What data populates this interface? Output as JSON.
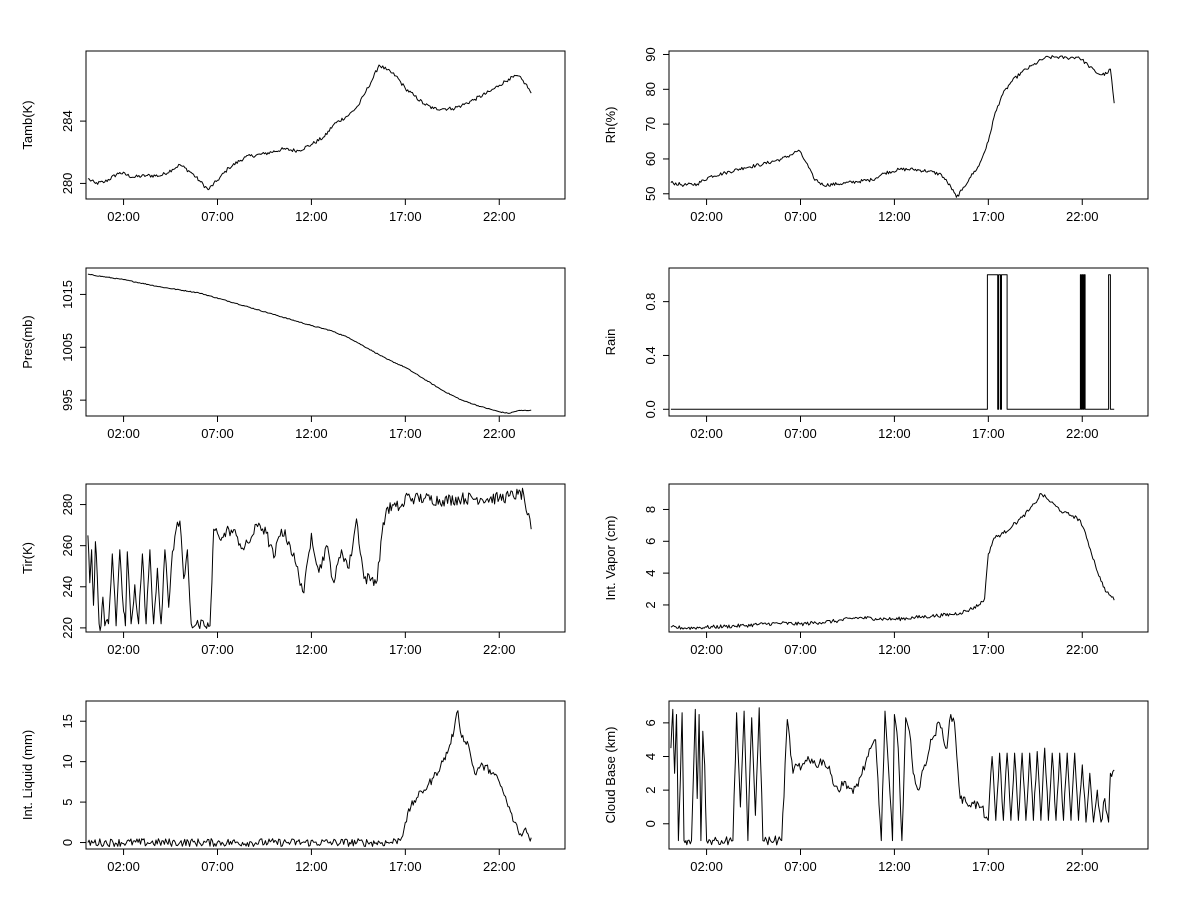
{
  "chart_data": [
    {
      "type": "line",
      "ylabel": "Tamb(K)",
      "xlim": [
        0,
        25.5
      ],
      "ylim": [
        279,
        288.5
      ],
      "x_ticks": [
        2,
        7,
        12,
        17,
        22
      ],
      "x_tick_labels": [
        "02:00",
        "07:00",
        "12:00",
        "17:00",
        "22:00"
      ],
      "y_ticks": [
        280,
        284
      ],
      "y_tick_labels": [
        "280",
        "284"
      ],
      "noise": 0.12,
      "series": [
        {
          "x": [
            0.1,
            0.5,
            1.0,
            1.8,
            2.5,
            3.2,
            4.0,
            4.6,
            5.0,
            5.6,
            6.1,
            6.5,
            7.0,
            7.6,
            8.5,
            9.5,
            10.5,
            11.3,
            12.0,
            12.7,
            13.2,
            14.0,
            14.5,
            14.9,
            15.3,
            15.6,
            16.0,
            16.5,
            17.0,
            17.5,
            18.0,
            18.5,
            19.0,
            19.5,
            20.0,
            20.7,
            21.5,
            22.0,
            22.5,
            23.0,
            23.4,
            23.7
          ],
          "y": [
            280.3,
            280.0,
            280.1,
            280.7,
            280.4,
            280.5,
            280.5,
            280.9,
            281.2,
            280.7,
            280.1,
            279.6,
            280.2,
            281.0,
            281.7,
            281.9,
            282.2,
            282.1,
            282.5,
            283.0,
            283.8,
            284.4,
            285.0,
            285.9,
            286.8,
            287.6,
            287.3,
            286.9,
            286.1,
            285.6,
            285.1,
            284.8,
            284.8,
            284.8,
            285.0,
            285.4,
            285.9,
            286.3,
            286.7,
            286.9,
            286.4,
            285.8
          ]
        }
      ]
    },
    {
      "type": "line",
      "ylabel": "Rh(%)",
      "xlim": [
        0,
        25.5
      ],
      "ylim": [
        48.5,
        91
      ],
      "x_ticks": [
        2,
        7,
        12,
        17,
        22
      ],
      "x_tick_labels": [
        "02:00",
        "07:00",
        "12:00",
        "17:00",
        "22:00"
      ],
      "y_ticks": [
        50,
        60,
        70,
        80,
        90
      ],
      "y_tick_labels": [
        "50",
        "60",
        "70",
        "80",
        "90"
      ],
      "noise": 0.5,
      "series": [
        {
          "x": [
            0.1,
            0.8,
            1.5,
            2.2,
            3.0,
            4.0,
            5.0,
            6.0,
            6.5,
            6.9,
            7.3,
            7.7,
            8.2,
            9.0,
            10.0,
            10.8,
            11.5,
            12.3,
            13.0,
            13.8,
            14.5,
            15.0,
            15.3,
            15.6,
            16.0,
            16.5,
            17.0,
            17.3,
            17.7,
            18.2,
            18.8,
            19.4,
            20.0,
            20.6,
            21.2,
            21.8,
            22.3,
            22.7,
            23.0,
            23.3,
            23.5,
            23.7
          ],
          "y": [
            53.2,
            52.5,
            52.8,
            55.0,
            56.0,
            57.5,
            58.5,
            60.0,
            61.2,
            62.5,
            59.0,
            54.5,
            52.5,
            52.8,
            53.5,
            54.0,
            56.0,
            57.0,
            57.0,
            56.5,
            55.5,
            52.0,
            49.0,
            51.0,
            54.5,
            58.0,
            65.0,
            72.0,
            78.0,
            82.0,
            85.0,
            87.0,
            89.0,
            89.3,
            89.0,
            89.3,
            87.0,
            85.0,
            84.2,
            84.5,
            85.8,
            76.0
          ]
        }
      ]
    },
    {
      "type": "line",
      "ylabel": "Pres(mb)",
      "xlim": [
        0,
        25.5
      ],
      "ylim": [
        992,
        1020
      ],
      "x_ticks": [
        2,
        7,
        12,
        17,
        22
      ],
      "x_tick_labels": [
        "02:00",
        "07:00",
        "12:00",
        "17:00",
        "22:00"
      ],
      "y_ticks": [
        995,
        1005,
        1015
      ],
      "y_tick_labels": [
        "995",
        "1005",
        "1015"
      ],
      "noise": 0.08,
      "series": [
        {
          "x": [
            0.1,
            2.0,
            4.0,
            6.0,
            8.0,
            10.0,
            12.0,
            13.0,
            14.0,
            15.0,
            16.0,
            17.0,
            18.0,
            19.0,
            20.0,
            21.0,
            22.0,
            22.5,
            23.0,
            23.7
          ],
          "y": [
            1018.8,
            1017.8,
            1016.4,
            1015.3,
            1013.3,
            1011.2,
            1009.1,
            1008.2,
            1006.8,
            1004.8,
            1002.8,
            1001.2,
            999.0,
            996.8,
            995.0,
            993.8,
            992.8,
            992.5,
            993.0,
            993.1
          ]
        }
      ]
    },
    {
      "type": "line",
      "step": true,
      "ylabel": "Rain",
      "xlim": [
        0,
        25.5
      ],
      "ylim": [
        -0.05,
        1.05
      ],
      "x_ticks": [
        2,
        7,
        12,
        17,
        22
      ],
      "x_tick_labels": [
        "02:00",
        "07:00",
        "12:00",
        "17:00",
        "22:00"
      ],
      "y_ticks": [
        0.0,
        0.4,
        0.8
      ],
      "y_tick_labels": [
        "0.0",
        "0.4",
        "0.8"
      ],
      "noise": 0,
      "series": [
        {
          "x": [
            0.1,
            16.95,
            16.95,
            17.5,
            17.5,
            17.55,
            17.55,
            17.65,
            17.65,
            17.7,
            17.7,
            18.0,
            18.0,
            21.9,
            21.9,
            21.95,
            21.95,
            22.0,
            22.0,
            22.05,
            22.05,
            22.1,
            22.1,
            22.15,
            22.15,
            22.3,
            22.3,
            23.4,
            23.4,
            23.5,
            23.5,
            23.7
          ],
          "y": [
            0,
            0,
            1,
            1,
            0,
            0,
            1,
            1,
            0,
            0,
            1,
            1,
            0,
            0,
            1,
            1,
            0,
            0,
            1,
            1,
            0,
            0,
            1,
            1,
            0,
            0,
            0,
            0,
            1,
            1,
            0,
            0
          ]
        }
      ]
    },
    {
      "type": "line",
      "ylabel": "Tir(K)",
      "xlim": [
        0,
        25.5
      ],
      "ylim": [
        218,
        290
      ],
      "x_ticks": [
        2,
        7,
        12,
        17,
        22
      ],
      "x_tick_labels": [
        "02:00",
        "07:00",
        "12:00",
        "17:00",
        "22:00"
      ],
      "y_ticks": [
        220,
        240,
        260,
        280
      ],
      "y_tick_labels": [
        "220",
        "240",
        "260",
        "280"
      ],
      "noise": 3,
      "series": [
        {
          "x": [
            0.1,
            0.2,
            0.3,
            0.4,
            0.5,
            0.6,
            0.7,
            0.8,
            0.9,
            1.0,
            1.2,
            1.4,
            1.6,
            1.8,
            2.0,
            2.1,
            2.2,
            2.4,
            2.6,
            2.8,
            3.0,
            3.2,
            3.4,
            3.6,
            3.8,
            4.0,
            4.2,
            4.4,
            4.6,
            4.8,
            5.0,
            5.2,
            5.4,
            5.6,
            5.8,
            6.0,
            6.3,
            6.6,
            6.7,
            6.8,
            7.0,
            7.3,
            7.6,
            8.0,
            8.4,
            8.8,
            9.2,
            9.6,
            10.0,
            10.4,
            10.8,
            11.2,
            11.6,
            12.0,
            12.4,
            12.8,
            13.2,
            13.6,
            14.0,
            14.4,
            14.8,
            15.2,
            15.5,
            15.7,
            16.0,
            16.5,
            16.9,
            17.0,
            17.5,
            18.0,
            19.0,
            20.0,
            21.0,
            22.0,
            22.5,
            23.0,
            23.3,
            23.5,
            23.7
          ],
          "y": [
            265,
            242,
            258,
            231,
            262,
            245,
            222,
            221,
            235,
            221,
            222,
            256,
            221,
            258,
            228,
            221,
            257,
            222,
            241,
            222,
            256,
            222,
            258,
            222,
            249,
            222,
            258,
            230,
            257,
            268,
            272,
            244,
            258,
            222,
            221,
            221,
            221,
            221,
            242,
            268,
            266,
            264,
            268,
            265,
            258,
            264,
            271,
            266,
            254,
            268,
            262,
            250,
            237,
            266,
            247,
            260,
            242,
            258,
            249,
            273,
            244,
            244,
            243,
            262,
            278,
            279,
            279,
            284,
            283,
            283,
            282,
            283,
            283,
            283,
            284,
            285,
            285,
            275,
            268
          ]
        }
      ]
    },
    {
      "type": "line",
      "ylabel": "Int. Vapor (cm)",
      "xlim": [
        0,
        25.5
      ],
      "ylim": [
        0.3,
        9.6
      ],
      "x_ticks": [
        2,
        7,
        12,
        17,
        22
      ],
      "x_tick_labels": [
        "02:00",
        "07:00",
        "12:00",
        "17:00",
        "22:00"
      ],
      "y_ticks": [
        2,
        4,
        6,
        8
      ],
      "y_tick_labels": [
        "2",
        "4",
        "6",
        "8"
      ],
      "noise": 0.12,
      "series": [
        {
          "x": [
            0.1,
            1.0,
            2.0,
            3.0,
            4.0,
            5.0,
            6.0,
            7.0,
            8.0,
            9.0,
            10.0,
            11.0,
            12.0,
            13.0,
            14.0,
            15.0,
            15.5,
            16.0,
            16.5,
            16.8,
            17.0,
            17.3,
            17.8,
            18.3,
            18.8,
            19.2,
            19.5,
            19.8,
            20.2,
            20.6,
            21.0,
            21.5,
            21.9,
            22.3,
            22.7,
            23.0,
            23.3,
            23.5,
            23.7
          ],
          "y": [
            0.6,
            0.55,
            0.6,
            0.65,
            0.7,
            0.8,
            0.85,
            0.8,
            0.9,
            1.0,
            1.2,
            1.15,
            1.1,
            1.2,
            1.3,
            1.4,
            1.5,
            1.7,
            2.0,
            2.4,
            5.2,
            6.2,
            6.5,
            7.0,
            7.5,
            8.0,
            8.4,
            9.0,
            8.6,
            8.2,
            7.8,
            7.6,
            7.3,
            6.0,
            4.5,
            3.5,
            2.8,
            2.6,
            2.3
          ]
        }
      ]
    },
    {
      "type": "line",
      "ylabel": "Int. Liquid (mm)",
      "xlim": [
        0,
        25.5
      ],
      "ylim": [
        -0.8,
        17.5
      ],
      "x_ticks": [
        2,
        7,
        12,
        17,
        22
      ],
      "x_tick_labels": [
        "02:00",
        "07:00",
        "12:00",
        "17:00",
        "22:00"
      ],
      "y_ticks": [
        0,
        5,
        10,
        15
      ],
      "y_tick_labels": [
        "0",
        "5",
        "10",
        "15"
      ],
      "noise": 0.5,
      "series": [
        {
          "x": [
            0.1,
            5.0,
            10.0,
            15.0,
            16.2,
            16.5,
            16.8,
            17.0,
            17.3,
            17.6,
            18.0,
            18.5,
            19.0,
            19.3,
            19.6,
            19.8,
            20.0,
            20.3,
            20.7,
            21.0,
            21.5,
            22.0,
            22.4,
            22.8,
            23.0,
            23.2,
            23.4,
            23.6,
            23.7
          ],
          "y": [
            0,
            0,
            0,
            0,
            0,
            0.2,
            0.6,
            2.5,
            4.5,
            5.5,
            6.5,
            8.0,
            10.0,
            11.5,
            14.0,
            16.3,
            13.0,
            12.5,
            8.5,
            9.5,
            9.0,
            7.5,
            5.0,
            2.5,
            1.5,
            0.8,
            1.8,
            0.5,
            0.6
          ]
        }
      ]
    },
    {
      "type": "line",
      "ylabel": "Cloud Base (km)",
      "xlim": [
        0,
        25.5
      ],
      "ylim": [
        -1.5,
        7.3
      ],
      "x_ticks": [
        2,
        7,
        12,
        17,
        22
      ],
      "x_tick_labels": [
        "02:00",
        "07:00",
        "12:00",
        "17:00",
        "22:00"
      ],
      "y_ticks": [
        0,
        2,
        4,
        6
      ],
      "y_tick_labels": [
        "0",
        "2",
        "4",
        "6"
      ],
      "noise": 0.3,
      "series": [
        {
          "x": [
            0.1,
            0.2,
            0.3,
            0.4,
            0.5,
            0.6,
            0.7,
            0.8,
            0.9,
            1.0,
            1.2,
            1.4,
            1.5,
            1.6,
            1.7,
            1.8,
            1.9,
            2.0,
            2.2,
            2.4,
            2.6,
            2.8,
            3.0,
            3.2,
            3.4,
            3.6,
            3.8,
            4.0,
            4.2,
            4.4,
            4.6,
            4.8,
            5.0,
            5.2,
            5.4,
            5.6,
            5.8,
            6.0,
            6.3,
            6.6,
            6.8,
            7.0,
            7.4,
            7.8,
            8.2,
            8.6,
            9.0,
            9.4,
            9.8,
            10.2,
            10.6,
            11.0,
            11.3,
            11.5,
            11.7,
            11.9,
            12.0,
            12.2,
            12.4,
            12.6,
            12.8,
            13.0,
            13.3,
            13.6,
            14.0,
            14.4,
            14.8,
            15.0,
            15.2,
            15.5,
            15.8,
            16.2,
            16.6,
            16.9,
            17.0,
            17.2,
            17.4,
            17.6,
            17.8,
            18.0,
            18.2,
            18.4,
            18.6,
            18.8,
            19.0,
            19.2,
            19.4,
            19.6,
            19.8,
            20.0,
            20.2,
            20.4,
            20.6,
            20.8,
            21.0,
            21.2,
            21.4,
            21.6,
            21.8,
            22.0,
            22.2,
            22.4,
            22.6,
            22.8,
            23.0,
            23.2,
            23.4,
            23.5,
            23.7
          ],
          "y": [
            4.5,
            6.8,
            3.0,
            6.5,
            -1,
            2.5,
            6.6,
            -1,
            -1,
            -1,
            -1,
            6.8,
            1.5,
            6.5,
            -1,
            5.5,
            3.5,
            -1,
            -1,
            -1,
            -1,
            -1,
            -1,
            -1,
            -1,
            6.6,
            1.0,
            6.7,
            -1,
            6.3,
            0.5,
            6.9,
            -1,
            -1,
            -1,
            -1,
            -1,
            -1,
            6.2,
            3.0,
            3.5,
            3.2,
            4.0,
            3.5,
            3.8,
            3.0,
            2.0,
            2.5,
            1.8,
            2.8,
            4.0,
            5.0,
            -1,
            6.7,
            3.0,
            -1,
            6.5,
            4.5,
            -1,
            6.3,
            5.5,
            3.0,
            2.0,
            3.5,
            5.0,
            6.0,
            4.5,
            6.5,
            6.0,
            1.5,
            1.3,
            1.2,
            1.0,
            0.4,
            0.2,
            4.0,
            0.2,
            4.2,
            0.2,
            4.2,
            0.2,
            4.2,
            0.2,
            4.2,
            0.2,
            4.2,
            0.2,
            4.3,
            0.2,
            4.5,
            0.2,
            4.2,
            0.2,
            4.2,
            0.2,
            4.2,
            0.2,
            4.2,
            0.2,
            3.5,
            0.1,
            3.0,
            0.1,
            2.0,
            0.1,
            1.5,
            0.1,
            3.0,
            3.2
          ]
        }
      ]
    }
  ]
}
